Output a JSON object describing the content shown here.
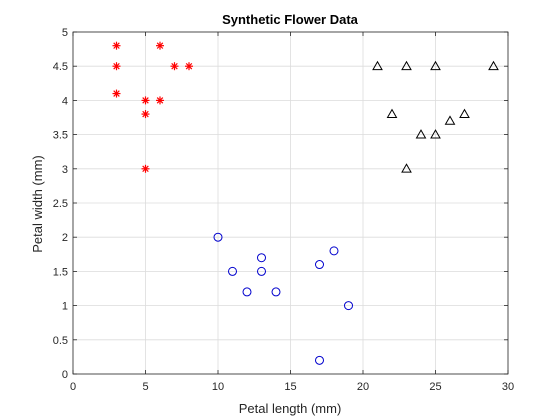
{
  "chart_data": {
    "type": "scatter",
    "title": "Synthetic Flower Data",
    "xlabel": "Petal length (mm)",
    "ylabel": "Petal width (mm)",
    "xlim": [
      0,
      30
    ],
    "ylim": [
      0,
      5
    ],
    "xticks": [
      0,
      5,
      10,
      15,
      20,
      25,
      30
    ],
    "yticks": [
      0,
      0.5,
      1,
      1.5,
      2,
      2.5,
      3,
      3.5,
      4,
      4.5,
      5
    ],
    "grid": true,
    "legend": "none",
    "series": [
      {
        "marker": "asterisk",
        "color": "#ff0000",
        "points": [
          [
            3,
            4.8
          ],
          [
            6,
            4.8
          ],
          [
            3,
            4.5
          ],
          [
            7,
            4.5
          ],
          [
            8,
            4.5
          ],
          [
            3,
            4.1
          ],
          [
            5,
            4.0
          ],
          [
            6,
            4.0
          ],
          [
            5,
            3.8
          ],
          [
            5,
            3.0
          ]
        ]
      },
      {
        "marker": "circle",
        "color": "#0000cd",
        "points": [
          [
            10,
            2.0
          ],
          [
            11,
            1.5
          ],
          [
            12,
            1.2
          ],
          [
            13,
            1.7
          ],
          [
            13,
            1.5
          ],
          [
            14,
            1.2
          ],
          [
            17,
            1.6
          ],
          [
            18,
            1.8
          ],
          [
            19,
            1.0
          ],
          [
            17,
            0.2
          ]
        ]
      },
      {
        "marker": "triangle",
        "color": "#000000",
        "points": [
          [
            21,
            4.5
          ],
          [
            23,
            4.5
          ],
          [
            25,
            4.5
          ],
          [
            29,
            4.5
          ],
          [
            22,
            3.8
          ],
          [
            24,
            3.5
          ],
          [
            25,
            3.5
          ],
          [
            26,
            3.7
          ],
          [
            27,
            3.8
          ],
          [
            23,
            3.0
          ]
        ]
      }
    ]
  }
}
